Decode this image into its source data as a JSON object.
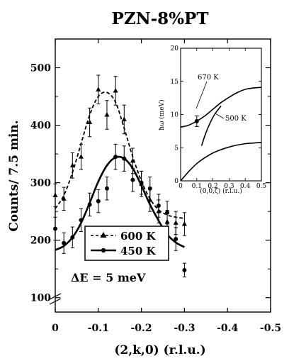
{
  "chart_data": [
    {
      "type": "scatter",
      "title": "PZN-8%PT",
      "xlabel": "(2,k,0) (r.l.u.)",
      "ylabel": "Counts/ 7.5 min.",
      "xlim": [
        0,
        -0.5
      ],
      "ylim": [
        75,
        550
      ],
      "xticks": [
        "0",
        "-0.1",
        "-0.2",
        "-0.3",
        "-0.4",
        "-0.5"
      ],
      "xtick_values": [
        0,
        -0.1,
        -0.2,
        -0.3,
        -0.4,
        -0.5
      ],
      "yticks": [
        "100",
        "200",
        "300",
        "400",
        "500"
      ],
      "ytick_values": [
        100,
        200,
        300,
        400,
        500
      ],
      "axis_break": true,
      "legend": {
        "placement": "center-left",
        "entries": [
          "600 K",
          "450 K"
        ]
      },
      "annotation": "ΔE = 5 meV",
      "series": [
        {
          "name": "600 K",
          "marker": "triangle",
          "line": "dashed",
          "x": [
            0,
            -0.02,
            -0.04,
            -0.06,
            -0.08,
            -0.1,
            -0.12,
            -0.14,
            -0.16,
            -0.18,
            -0.2,
            -0.22,
            -0.24,
            -0.26,
            -0.28,
            -0.3
          ],
          "y": [
            278,
            272,
            330,
            345,
            405,
            462,
            418,
            460,
            410,
            338,
            298,
            270,
            250,
            232,
            230,
            228
          ],
          "err": [
            20,
            20,
            22,
            22,
            25,
            25,
            25,
            25,
            25,
            22,
            22,
            20,
            20,
            20,
            20,
            20
          ],
          "fit_x": [
            0,
            -0.02,
            -0.04,
            -0.06,
            -0.08,
            -0.1,
            -0.12,
            -0.14,
            -0.16,
            -0.18,
            -0.2,
            -0.22,
            -0.24,
            -0.26,
            -0.28,
            -0.3
          ],
          "fit_y": [
            255,
            278,
            318,
            368,
            418,
            450,
            457,
            440,
            395,
            345,
            303,
            272,
            253,
            244,
            240,
            238
          ]
        },
        {
          "name": "450 K",
          "marker": "circle",
          "line": "solid",
          "x": [
            0,
            -0.02,
            -0.04,
            -0.06,
            -0.08,
            -0.1,
            -0.12,
            -0.14,
            -0.16,
            -0.18,
            -0.2,
            -0.22,
            -0.24,
            -0.26,
            -0.28,
            -0.3
          ],
          "y": [
            220,
            195,
            205,
            235,
            262,
            268,
            290,
            345,
            342,
            305,
            300,
            290,
            260,
            248,
            202,
            148
          ],
          "err": [
            20,
            18,
            18,
            20,
            20,
            20,
            20,
            22,
            22,
            20,
            20,
            20,
            20,
            20,
            20,
            12
          ],
          "fit_x": [
            0,
            -0.02,
            -0.04,
            -0.06,
            -0.08,
            -0.1,
            -0.12,
            -0.14,
            -0.16,
            -0.18,
            -0.2,
            -0.22,
            -0.24,
            -0.26,
            -0.28,
            -0.3
          ],
          "fit_y": [
            183,
            190,
            205,
            230,
            265,
            302,
            330,
            344,
            342,
            325,
            295,
            262,
            234,
            210,
            196,
            188
          ]
        }
      ]
    },
    {
      "type": "line",
      "title": "",
      "xlabel": "(0,0,ζ) (r.l.u.)",
      "ylabel": "ħω (meV)",
      "xlim": [
        0,
        0.5
      ],
      "ylim": [
        0,
        20
      ],
      "xticks": [
        "0",
        "0.1",
        "0.2",
        "0.3",
        "0.4",
        "0.5"
      ],
      "xtick_values": [
        0,
        0.1,
        0.2,
        0.3,
        0.4,
        0.5
      ],
      "yticks": [
        "0",
        "5",
        "10",
        "15",
        "20"
      ],
      "ytick_values": [
        0,
        5,
        10,
        15,
        20
      ],
      "annotations": [
        "670 K",
        "500 K"
      ],
      "series": [
        {
          "x": [
            0,
            0.05,
            0.1,
            0.15,
            0.2,
            0.25,
            0.3,
            0.35,
            0.4,
            0.45,
            0.5
          ],
          "y": [
            0,
            1.4,
            2.6,
            3.5,
            4.2,
            4.7,
            5.1,
            5.4,
            5.6,
            5.7,
            5.8
          ]
        },
        {
          "x": [
            0,
            0.05,
            0.1,
            0.15,
            0.2,
            0.25,
            0.3,
            0.35,
            0.4,
            0.45,
            0.5
          ],
          "y": [
            8.1,
            8.4,
            9.0,
            9.8,
            10.8,
            11.8,
            12.6,
            13.3,
            13.8,
            14.0,
            14.1
          ]
        },
        {
          "x": [
            0.13,
            0.15,
            0.18,
            0.21,
            0.25
          ],
          "y": [
            5.3,
            6.8,
            8.6,
            10.0,
            11.3
          ]
        }
      ],
      "points": [
        {
          "x": 0.1,
          "y": 9.0,
          "err": 0.8
        }
      ]
    }
  ]
}
